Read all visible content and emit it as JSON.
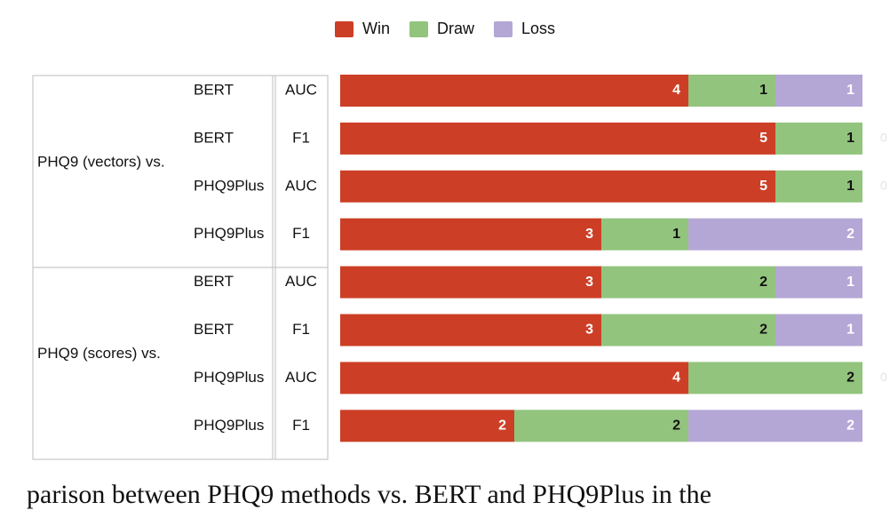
{
  "legend": [
    {
      "label": "Win",
      "color": "#cc3f26"
    },
    {
      "label": "Draw",
      "color": "#92c47d"
    },
    {
      "label": "Loss",
      "color": "#b4a7d6"
    }
  ],
  "chart_data": {
    "type": "bar",
    "stacked": true,
    "orientation": "horizontal",
    "groups": [
      {
        "label": "PHQ9 (vectors) vs.",
        "rows": [
          {
            "model": "BERT",
            "metric": "AUC",
            "win": 4,
            "draw": 1,
            "loss": 1
          },
          {
            "model": "BERT",
            "metric": "F1",
            "win": 5,
            "draw": 1,
            "loss": 0
          },
          {
            "model": "PHQ9Plus",
            "metric": "AUC",
            "win": 5,
            "draw": 1,
            "loss": 0
          },
          {
            "model": "PHQ9Plus",
            "metric": "F1",
            "win": 3,
            "draw": 1,
            "loss": 2
          }
        ]
      },
      {
        "label": "PHQ9 (scores) vs.",
        "rows": [
          {
            "model": "BERT",
            "metric": "AUC",
            "win": 3,
            "draw": 2,
            "loss": 1
          },
          {
            "model": "BERT",
            "metric": "F1",
            "win": 3,
            "draw": 2,
            "loss": 1
          },
          {
            "model": "PHQ9Plus",
            "metric": "AUC",
            "win": 4,
            "draw": 2,
            "loss": 0
          },
          {
            "model": "PHQ9Plus",
            "metric": "F1",
            "win": 2,
            "draw": 2,
            "loss": 2
          }
        ]
      }
    ],
    "total": 6,
    "legend_position": "top-center"
  },
  "caption_fragment": "parison between PHQ9 methods vs. BERT and PHQ9Plus in the"
}
